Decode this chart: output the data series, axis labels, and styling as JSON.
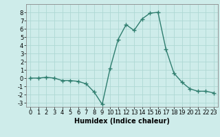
{
  "x": [
    0,
    1,
    2,
    3,
    4,
    5,
    6,
    7,
    8,
    9,
    10,
    11,
    12,
    13,
    14,
    15,
    16,
    17,
    18,
    19,
    20,
    21,
    22,
    23
  ],
  "y": [
    0.0,
    0.0,
    0.1,
    0.0,
    -0.3,
    -0.3,
    -0.4,
    -0.7,
    -1.7,
    -3.2,
    1.2,
    4.7,
    6.5,
    5.8,
    7.2,
    7.9,
    8.0,
    3.5,
    0.6,
    -0.5,
    -1.3,
    -1.6,
    -1.6,
    -1.8
  ],
  "line_color": "#2e7d6e",
  "marker": "+",
  "marker_size": 4,
  "linewidth": 1.0,
  "bg_color": "#ceecea",
  "grid_color": "#aed8d4",
  "xlabel": "Humidex (Indice chaleur)",
  "xlabel_fontsize": 7,
  "tick_fontsize": 6,
  "ylim": [
    -3.5,
    9.0
  ],
  "xlim": [
    -0.5,
    23.5
  ],
  "yticks": [
    -3,
    -2,
    -1,
    0,
    1,
    2,
    3,
    4,
    5,
    6,
    7,
    8
  ],
  "xticks": [
    0,
    1,
    2,
    3,
    4,
    5,
    6,
    7,
    8,
    9,
    10,
    11,
    12,
    13,
    14,
    15,
    16,
    17,
    18,
    19,
    20,
    21,
    22,
    23
  ]
}
